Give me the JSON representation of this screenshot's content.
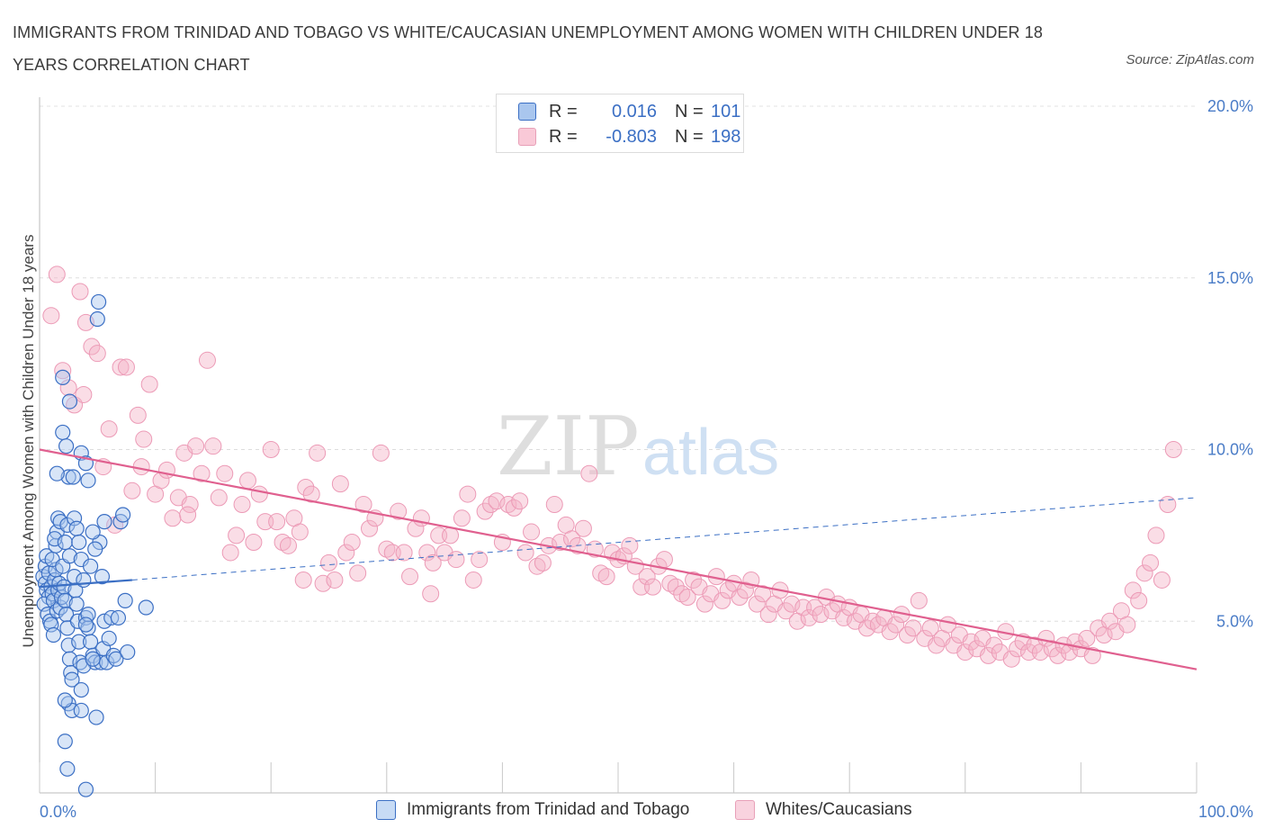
{
  "header": {
    "title": "IMMIGRANTS FROM TRINIDAD AND TOBAGO VS WHITE/CAUCASIAN UNEMPLOYMENT AMONG WOMEN WITH CHILDREN UNDER 18 YEARS CORRELATION CHART",
    "source": "Source: ZipAtlas.com"
  },
  "watermark": {
    "zip": "ZIP",
    "atlas": "atlas"
  },
  "stats": {
    "blue": {
      "r_label": "R =",
      "r_value": "0.016",
      "n_label": "N =",
      "n_value": "101"
    },
    "pink": {
      "r_label": "R =",
      "r_value": "-0.803",
      "n_label": "N =",
      "n_value": "198"
    }
  },
  "legend": {
    "blue_label": "Immigrants from Trinidad and Tobago",
    "pink_label": "Whites/Caucasians"
  },
  "colors": {
    "blue": "#3b6fc4",
    "blue_fill": "#a9c6ee",
    "pink": "#e0608f",
    "pink_fill": "#f5b3c8",
    "tick_text": "#4a7cc7"
  },
  "chart_data": {
    "type": "scatter",
    "title": "IMMIGRANTS FROM TRINIDAD AND TOBAGO VS WHITE/CAUCASIAN UNEMPLOYMENT AMONG WOMEN WITH CHILDREN UNDER 18 YEARS CORRELATION CHART",
    "xlabel": "",
    "ylabel": "Unemployment Among Women with Children Under 18 years",
    "xlim": [
      0,
      100
    ],
    "ylim": [
      0,
      20
    ],
    "x_tick_labels": [
      "0.0%",
      "100.0%"
    ],
    "y_ticks": [
      5,
      10,
      15,
      20
    ],
    "y_tick_labels": [
      "5.0%",
      "10.0%",
      "15.0%",
      "20.0%"
    ],
    "grid": true,
    "legend_position": "bottom",
    "series": [
      {
        "name": "Immigrants from Trinidad and Tobago",
        "color": "#3b6fc4",
        "r": 0.016,
        "n": 101,
        "trend": {
          "x": [
            0,
            8
          ],
          "y": [
            6.0,
            6.2
          ],
          "dashed_extension": {
            "x": [
              8,
              100
            ],
            "y": [
              6.2,
              8.6
            ]
          }
        },
        "points": [
          [
            0.3,
            6.3
          ],
          [
            0.5,
            6.1
          ],
          [
            0.6,
            5.9
          ],
          [
            0.8,
            5.7
          ],
          [
            0.4,
            5.5
          ],
          [
            0.7,
            5.2
          ],
          [
            0.9,
            5.0
          ],
          [
            0.5,
            6.6
          ],
          [
            0.6,
            6.9
          ],
          [
            0.8,
            6.4
          ],
          [
            1.0,
            6.0
          ],
          [
            1.1,
            5.8
          ],
          [
            1.2,
            5.6
          ],
          [
            1.3,
            6.2
          ],
          [
            1.4,
            6.5
          ],
          [
            1.5,
            5.3
          ],
          [
            1.6,
            5.9
          ],
          [
            1.7,
            6.1
          ],
          [
            1.8,
            5.4
          ],
          [
            1.9,
            5.7
          ],
          [
            1.0,
            4.9
          ],
          [
            1.2,
            4.6
          ],
          [
            1.4,
            7.2
          ],
          [
            1.5,
            7.6
          ],
          [
            1.6,
            8.0
          ],
          [
            1.8,
            7.9
          ],
          [
            1.3,
            7.4
          ],
          [
            1.1,
            6.8
          ],
          [
            2.0,
            6.6
          ],
          [
            2.1,
            6.0
          ],
          [
            2.2,
            5.6
          ],
          [
            2.3,
            5.2
          ],
          [
            2.4,
            4.8
          ],
          [
            2.5,
            4.3
          ],
          [
            2.6,
            3.9
          ],
          [
            2.7,
            3.5
          ],
          [
            2.8,
            3.3
          ],
          [
            2.2,
            7.3
          ],
          [
            2.4,
            7.8
          ],
          [
            2.6,
            6.9
          ],
          [
            3.0,
            6.3
          ],
          [
            3.1,
            5.9
          ],
          [
            3.2,
            5.5
          ],
          [
            3.3,
            5.0
          ],
          [
            3.4,
            4.4
          ],
          [
            3.5,
            3.8
          ],
          [
            3.6,
            3.0
          ],
          [
            2.5,
            2.6
          ],
          [
            2.8,
            2.4
          ],
          [
            2.2,
            2.7
          ],
          [
            3.0,
            8.0
          ],
          [
            3.2,
            7.7
          ],
          [
            3.4,
            7.3
          ],
          [
            3.6,
            6.8
          ],
          [
            3.8,
            6.2
          ],
          [
            4.0,
            5.1
          ],
          [
            4.2,
            4.8
          ],
          [
            4.4,
            4.4
          ],
          [
            4.6,
            4.0
          ],
          [
            4.8,
            3.8
          ],
          [
            2.0,
            10.5
          ],
          [
            2.3,
            10.1
          ],
          [
            2.5,
            9.2
          ],
          [
            1.5,
            9.3
          ],
          [
            2.0,
            12.1
          ],
          [
            2.6,
            11.4
          ],
          [
            3.6,
            9.9
          ],
          [
            4.0,
            9.6
          ],
          [
            4.2,
            9.1
          ],
          [
            2.9,
            9.2
          ],
          [
            3.6,
            2.4
          ],
          [
            4.0,
            0.1
          ],
          [
            4.9,
            2.2
          ],
          [
            2.2,
            1.5
          ],
          [
            2.4,
            0.7
          ],
          [
            5.0,
            13.8
          ],
          [
            5.1,
            14.3
          ],
          [
            5.3,
            3.8
          ],
          [
            5.5,
            4.2
          ],
          [
            5.6,
            5.0
          ],
          [
            5.8,
            3.8
          ],
          [
            6.0,
            4.5
          ],
          [
            6.2,
            5.1
          ],
          [
            6.4,
            4.0
          ],
          [
            6.6,
            3.9
          ],
          [
            6.8,
            5.1
          ],
          [
            7.0,
            7.9
          ],
          [
            7.2,
            8.1
          ],
          [
            7.4,
            5.6
          ],
          [
            7.6,
            4.1
          ],
          [
            5.2,
            7.3
          ],
          [
            5.4,
            6.3
          ],
          [
            5.6,
            7.9
          ],
          [
            4.6,
            7.6
          ],
          [
            4.8,
            7.1
          ],
          [
            4.4,
            6.6
          ],
          [
            4.2,
            5.2
          ],
          [
            4.0,
            4.9
          ],
          [
            3.8,
            3.7
          ],
          [
            4.6,
            3.9
          ],
          [
            9.2,
            5.4
          ]
        ]
      },
      {
        "name": "Whites/Caucasians",
        "color": "#e0608f",
        "r": -0.803,
        "n": 198,
        "trend": {
          "x": [
            0,
            100
          ],
          "y": [
            10.0,
            3.6
          ]
        },
        "points": [
          [
            1.0,
            13.9
          ],
          [
            1.5,
            15.1
          ],
          [
            2.0,
            12.3
          ],
          [
            2.5,
            11.8
          ],
          [
            3.0,
            11.3
          ],
          [
            3.5,
            14.6
          ],
          [
            4.0,
            13.7
          ],
          [
            4.5,
            13.0
          ],
          [
            5.0,
            12.8
          ],
          [
            5.5,
            9.5
          ],
          [
            6.0,
            10.6
          ],
          [
            6.5,
            7.8
          ],
          [
            7.0,
            12.4
          ],
          [
            7.5,
            12.4
          ],
          [
            8.0,
            8.8
          ],
          [
            8.5,
            11.0
          ],
          [
            9.0,
            10.3
          ],
          [
            9.5,
            11.9
          ],
          [
            10.0,
            8.7
          ],
          [
            10.5,
            9.1
          ],
          [
            11.0,
            9.4
          ],
          [
            11.5,
            8.0
          ],
          [
            12.0,
            8.6
          ],
          [
            12.5,
            9.9
          ],
          [
            13.0,
            8.4
          ],
          [
            13.5,
            10.1
          ],
          [
            14.0,
            9.3
          ],
          [
            14.5,
            12.6
          ],
          [
            15.0,
            10.1
          ],
          [
            15.5,
            8.6
          ],
          [
            16.0,
            9.3
          ],
          [
            16.5,
            7.0
          ],
          [
            17.0,
            7.5
          ],
          [
            17.5,
            8.4
          ],
          [
            18.0,
            9.1
          ],
          [
            18.5,
            7.3
          ],
          [
            19.0,
            8.7
          ],
          [
            19.5,
            7.9
          ],
          [
            20.0,
            10.0
          ],
          [
            20.5,
            7.9
          ],
          [
            21.0,
            7.3
          ],
          [
            21.5,
            7.2
          ],
          [
            22.0,
            8.0
          ],
          [
            22.5,
            7.6
          ],
          [
            23.0,
            8.9
          ],
          [
            23.5,
            8.7
          ],
          [
            24.0,
            9.9
          ],
          [
            24.5,
            6.1
          ],
          [
            25.0,
            6.7
          ],
          [
            25.5,
            6.2
          ],
          [
            26.0,
            9.0
          ],
          [
            26.5,
            7.0
          ],
          [
            27.0,
            7.3
          ],
          [
            27.5,
            6.4
          ],
          [
            28.0,
            8.4
          ],
          [
            28.5,
            7.7
          ],
          [
            29.0,
            8.0
          ],
          [
            29.5,
            9.9
          ],
          [
            30.0,
            7.1
          ],
          [
            30.5,
            7.0
          ],
          [
            31.0,
            8.2
          ],
          [
            31.5,
            7.0
          ],
          [
            32.0,
            6.3
          ],
          [
            32.5,
            7.7
          ],
          [
            33.0,
            8.0
          ],
          [
            33.5,
            7.0
          ],
          [
            34.0,
            6.7
          ],
          [
            34.5,
            7.5
          ],
          [
            35.0,
            7.0
          ],
          [
            35.5,
            7.5
          ],
          [
            36.0,
            6.8
          ],
          [
            36.5,
            8.0
          ],
          [
            37.0,
            8.7
          ],
          [
            37.5,
            6.2
          ],
          [
            38.0,
            6.8
          ],
          [
            38.5,
            8.2
          ],
          [
            39.0,
            8.4
          ],
          [
            39.5,
            8.5
          ],
          [
            40.0,
            7.3
          ],
          [
            40.5,
            8.4
          ],
          [
            41.0,
            8.3
          ],
          [
            41.5,
            8.5
          ],
          [
            42.0,
            7.0
          ],
          [
            42.5,
            7.6
          ],
          [
            43.0,
            6.6
          ],
          [
            43.5,
            6.7
          ],
          [
            44.0,
            7.2
          ],
          [
            44.5,
            8.4
          ],
          [
            45.0,
            7.3
          ],
          [
            45.5,
            7.8
          ],
          [
            46.0,
            7.4
          ],
          [
            46.5,
            7.2
          ],
          [
            47.0,
            7.7
          ],
          [
            47.5,
            9.3
          ],
          [
            48.0,
            7.1
          ],
          [
            48.5,
            6.4
          ],
          [
            49.0,
            6.3
          ],
          [
            49.5,
            7.0
          ],
          [
            50.0,
            6.8
          ],
          [
            50.5,
            6.9
          ],
          [
            51.0,
            7.2
          ],
          [
            51.5,
            6.6
          ],
          [
            52.0,
            6.0
          ],
          [
            52.5,
            6.3
          ],
          [
            53.0,
            6.0
          ],
          [
            53.5,
            6.6
          ],
          [
            54.0,
            6.8
          ],
          [
            54.5,
            6.1
          ],
          [
            55.0,
            6.0
          ],
          [
            55.5,
            5.8
          ],
          [
            56.0,
            5.7
          ],
          [
            56.5,
            6.2
          ],
          [
            57.0,
            6.0
          ],
          [
            57.5,
            5.5
          ],
          [
            58.0,
            5.8
          ],
          [
            58.5,
            6.3
          ],
          [
            59.0,
            5.6
          ],
          [
            59.5,
            5.9
          ],
          [
            60.0,
            6.1
          ],
          [
            60.5,
            5.7
          ],
          [
            61.0,
            5.9
          ],
          [
            61.5,
            6.2
          ],
          [
            62.0,
            5.5
          ],
          [
            62.5,
            5.8
          ],
          [
            63.0,
            5.2
          ],
          [
            63.5,
            5.5
          ],
          [
            64.0,
            5.9
          ],
          [
            64.5,
            5.3
          ],
          [
            65.0,
            5.5
          ],
          [
            65.5,
            5.0
          ],
          [
            66.0,
            5.4
          ],
          [
            66.5,
            5.1
          ],
          [
            67.0,
            5.4
          ],
          [
            67.5,
            5.2
          ],
          [
            68.0,
            5.7
          ],
          [
            68.5,
            5.3
          ],
          [
            69.0,
            5.5
          ],
          [
            69.5,
            5.1
          ],
          [
            70.0,
            5.4
          ],
          [
            70.5,
            5.0
          ],
          [
            71.0,
            5.2
          ],
          [
            71.5,
            4.8
          ],
          [
            72.0,
            5.0
          ],
          [
            72.5,
            4.9
          ],
          [
            73.0,
            5.1
          ],
          [
            73.5,
            4.7
          ],
          [
            74.0,
            4.9
          ],
          [
            74.5,
            5.2
          ],
          [
            75.0,
            4.6
          ],
          [
            75.5,
            4.8
          ],
          [
            76.0,
            5.6
          ],
          [
            76.5,
            4.5
          ],
          [
            77.0,
            4.8
          ],
          [
            77.5,
            4.3
          ],
          [
            78.0,
            4.5
          ],
          [
            78.5,
            4.9
          ],
          [
            79.0,
            4.3
          ],
          [
            79.5,
            4.6
          ],
          [
            80.0,
            4.1
          ],
          [
            80.5,
            4.4
          ],
          [
            81.0,
            4.2
          ],
          [
            81.5,
            4.5
          ],
          [
            82.0,
            4.0
          ],
          [
            82.5,
            4.3
          ],
          [
            83.0,
            4.1
          ],
          [
            83.5,
            4.7
          ],
          [
            84.0,
            3.9
          ],
          [
            84.5,
            4.2
          ],
          [
            85.0,
            4.4
          ],
          [
            85.5,
            4.1
          ],
          [
            86.0,
            4.3
          ],
          [
            86.5,
            4.1
          ],
          [
            87.0,
            4.5
          ],
          [
            87.5,
            4.2
          ],
          [
            88.0,
            4.0
          ],
          [
            88.5,
            4.3
          ],
          [
            89.0,
            4.1
          ],
          [
            89.5,
            4.4
          ],
          [
            90.0,
            4.2
          ],
          [
            90.5,
            4.5
          ],
          [
            91.0,
            4.0
          ],
          [
            91.5,
            4.8
          ],
          [
            92.0,
            4.6
          ],
          [
            92.5,
            5.0
          ],
          [
            93.0,
            4.7
          ],
          [
            93.5,
            5.3
          ],
          [
            94.0,
            4.9
          ],
          [
            94.5,
            5.9
          ],
          [
            95.0,
            5.6
          ],
          [
            95.5,
            6.4
          ],
          [
            96.0,
            6.7
          ],
          [
            96.5,
            7.5
          ],
          [
            97.0,
            6.2
          ],
          [
            97.5,
            8.4
          ],
          [
            98.0,
            10.0
          ],
          [
            3.8,
            11.6
          ],
          [
            8.8,
            9.5
          ],
          [
            12.8,
            8.1
          ],
          [
            22.8,
            6.2
          ],
          [
            33.8,
            5.8
          ]
        ]
      }
    ]
  }
}
